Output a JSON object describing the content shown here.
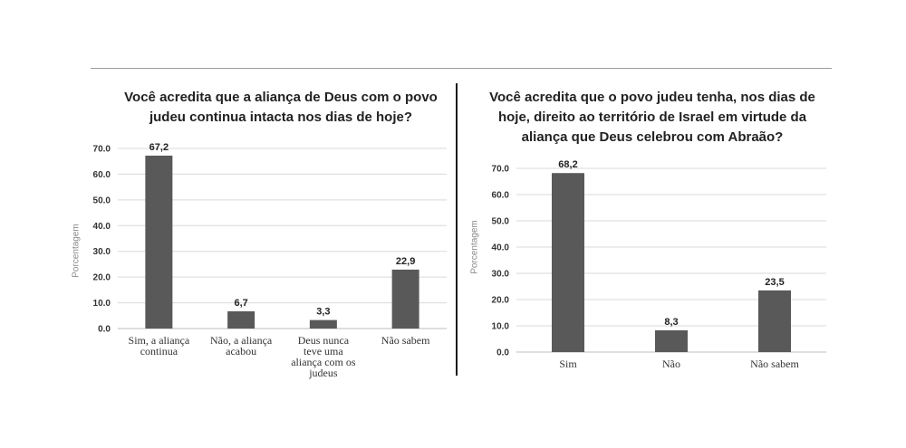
{
  "chart_data": [
    {
      "type": "bar",
      "title": "Você acredita que a aliança de Deus com o povo judeu continua intacta nos dias de hoje?",
      "ylabel": "Porcentagem",
      "xlabel": "",
      "ylim": [
        0,
        70
      ],
      "yticks": [
        "0.0",
        "10.0",
        "20.0",
        "30.0",
        "40.0",
        "50.0",
        "60.0",
        "70.0"
      ],
      "grid": true,
      "categories": [
        [
          "Sim, a aliança",
          "continua"
        ],
        [
          "Não, a aliança",
          "acabou"
        ],
        [
          "Deus nunca",
          "teve uma",
          "aliança com os",
          "judeus"
        ],
        [
          "Não sabem"
        ]
      ],
      "values": [
        67.2,
        6.7,
        3.3,
        22.9
      ],
      "value_labels": [
        "67,2",
        "6,7",
        "3,3",
        "22,9"
      ],
      "bar_color": "#595959"
    },
    {
      "type": "bar",
      "title": "Você acredita que o povo judeu tenha, nos dias de hoje, direito ao território de Israel em virtude da aliança que Deus celebrou com Abraão?",
      "ylabel": "Porcentagem",
      "xlabel": "",
      "ylim": [
        0,
        70
      ],
      "yticks": [
        "0.0",
        "10.0",
        "20.0",
        "30.0",
        "40.0",
        "50.0",
        "60.0",
        "70.0"
      ],
      "grid": true,
      "categories": [
        [
          "Sim"
        ],
        [
          "Não"
        ],
        [
          "Não sabem"
        ]
      ],
      "values": [
        68.2,
        8.3,
        23.5
      ],
      "value_labels": [
        "68,2",
        "8,3",
        "23,5"
      ],
      "bar_color": "#595959"
    }
  ]
}
